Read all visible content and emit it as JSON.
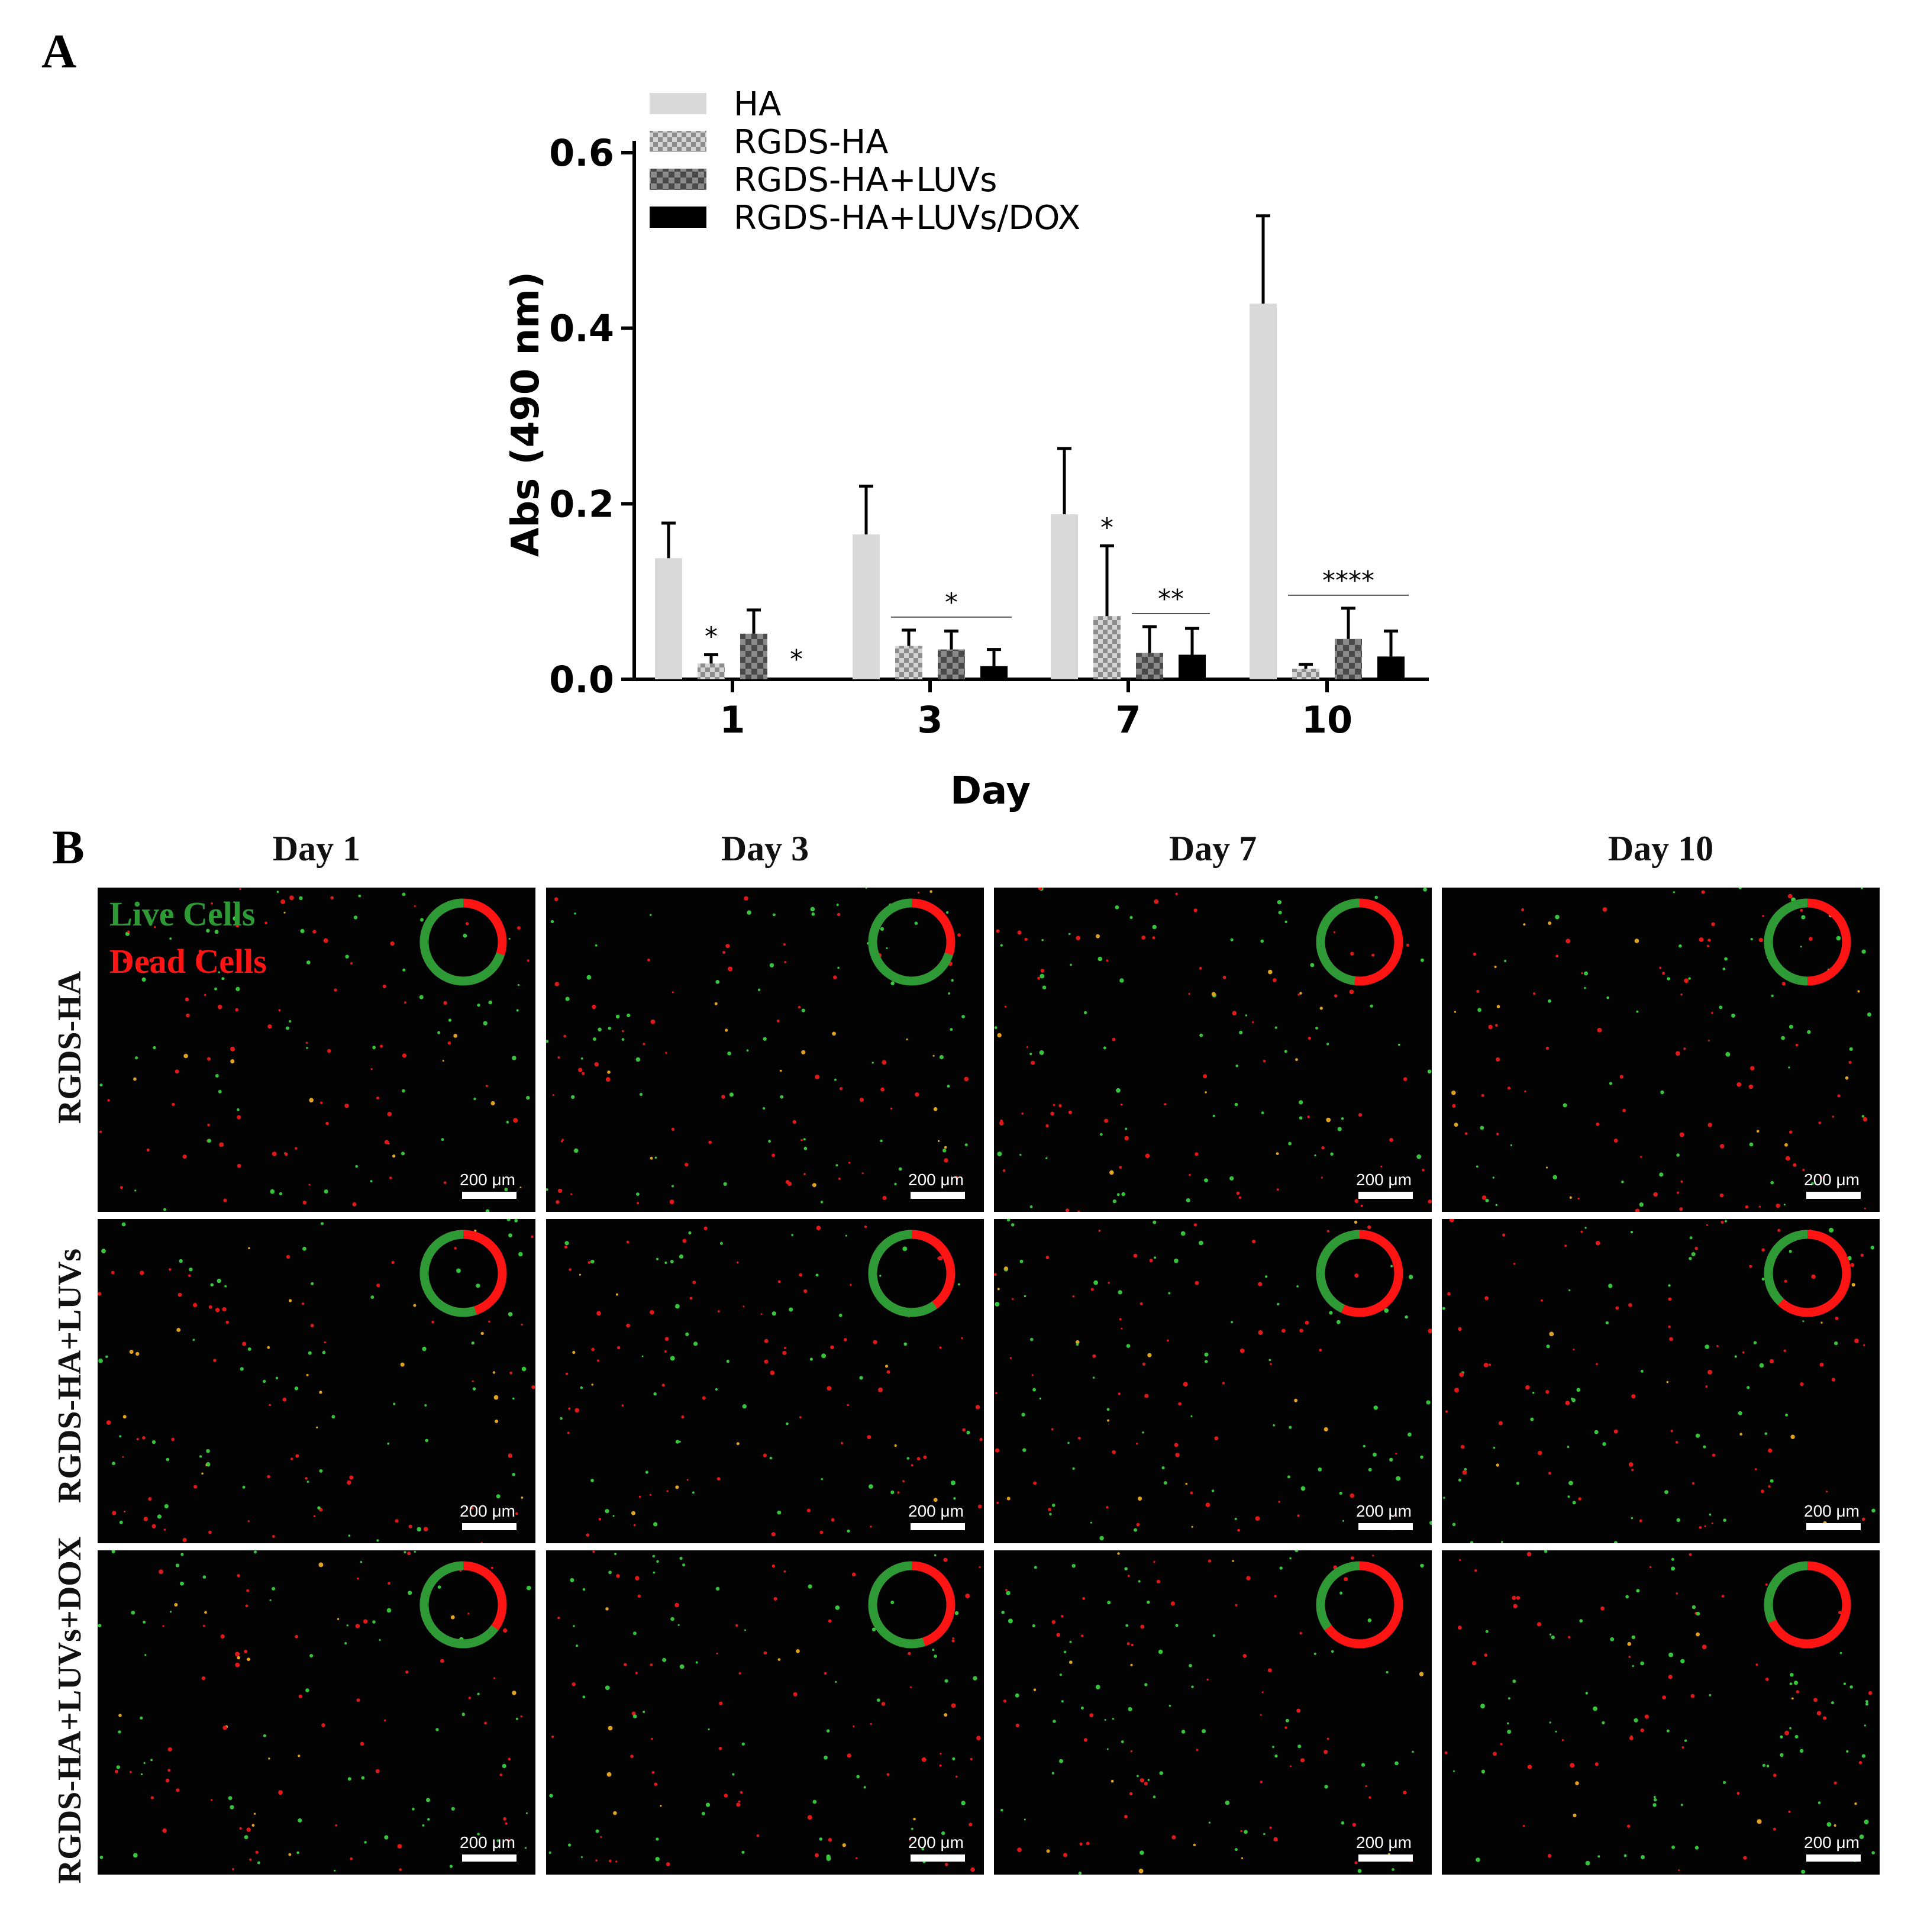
{
  "panels": {
    "a_label": "A",
    "b_label": "B"
  },
  "chart_data": {
    "type": "bar",
    "title": "",
    "xlabel": "Day",
    "ylabel": "Abs (490 nm)",
    "categories": [
      "1",
      "3",
      "7",
      "10"
    ],
    "ylim": [
      0,
      0.6
    ],
    "yticks": [
      "0.0",
      "0.2",
      "0.4",
      "0.6"
    ],
    "legend_position": "top-left",
    "series": [
      {
        "name": "HA",
        "values": [
          0.138,
          0.165,
          0.188,
          0.428
        ],
        "errors": [
          0.04,
          0.055,
          0.075,
          0.1
        ],
        "fill": "solid",
        "color": "#d9d9d9"
      },
      {
        "name": "RGDS-HA",
        "values": [
          0.018,
          0.038,
          0.072,
          0.012
        ],
        "errors": [
          0.01,
          0.018,
          0.08,
          0.005
        ],
        "fill": "checker-light",
        "color": "#a8a8a8"
      },
      {
        "name": "RGDS-HA+LUVs",
        "values": [
          0.052,
          0.034,
          0.03,
          0.046
        ],
        "errors": [
          0.027,
          0.021,
          0.03,
          0.035
        ],
        "fill": "checker-dark",
        "color": "#6e6e6e"
      },
      {
        "name": "RGDS-HA+LUVs/DOX",
        "values": [
          0.002,
          0.015,
          0.028,
          0.026
        ],
        "errors": [
          0.0,
          0.019,
          0.03,
          0.029
        ],
        "fill": "solid",
        "color": "#000000"
      }
    ],
    "significance": [
      {
        "group": 0,
        "type": "single",
        "series": 1,
        "text": "*"
      },
      {
        "group": 0,
        "type": "single",
        "series": 3,
        "text": "*"
      },
      {
        "group": 1,
        "type": "bracket",
        "from": 1,
        "to": 3,
        "text": "*"
      },
      {
        "group": 2,
        "type": "single",
        "series": 1,
        "text": "*"
      },
      {
        "group": 2,
        "type": "bracket",
        "from": 2,
        "to": 3,
        "text": "**"
      },
      {
        "group": 3,
        "type": "bracket",
        "from": 1,
        "to": 3,
        "text": "****"
      }
    ]
  },
  "microscopy": {
    "columns": [
      "Day 1",
      "Day 3",
      "Day 7",
      "Day 10"
    ],
    "rows": [
      "RGDS-HA",
      "RGDS-HA+LUVs",
      "RGDS-HA+LUVs+DOX"
    ],
    "stain_legend": {
      "live": "Live Cells",
      "dead": "Dead Cells",
      "live_color": "#2e9a36",
      "dead_color": "#ff1414"
    },
    "scale_bar": "200 μm",
    "live_fraction": [
      [
        0.7,
        0.7,
        0.48,
        0.5
      ],
      [
        0.55,
        0.6,
        0.43,
        0.38
      ],
      [
        0.65,
        0.55,
        0.35,
        0.32
      ]
    ]
  }
}
